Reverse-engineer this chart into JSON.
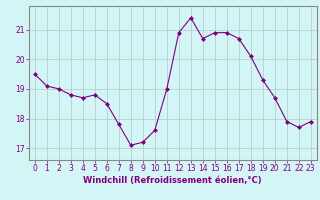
{
  "x": [
    0,
    1,
    2,
    3,
    4,
    5,
    6,
    7,
    8,
    9,
    10,
    11,
    12,
    13,
    14,
    15,
    16,
    17,
    18,
    19,
    20,
    21,
    22,
    23
  ],
  "y": [
    19.5,
    19.1,
    19.0,
    18.8,
    18.7,
    18.8,
    18.5,
    17.8,
    17.1,
    17.2,
    17.6,
    19.0,
    20.9,
    21.4,
    20.7,
    20.9,
    20.9,
    20.7,
    20.1,
    19.3,
    18.7,
    17.9,
    17.7,
    17.9
  ],
  "line_color": "#800080",
  "marker": "D",
  "marker_size": 2.0,
  "bg_color": "#d4f5f5",
  "grid_color": "#b0c8c8",
  "xlabel": "Windchill (Refroidissement éolien,°C)",
  "xlabel_color": "#800080",
  "tick_color": "#800080",
  "ylim": [
    16.6,
    21.8
  ],
  "yticks": [
    17,
    18,
    19,
    20,
    21
  ],
  "xlim": [
    -0.5,
    23.5
  ],
  "xticks": [
    0,
    1,
    2,
    3,
    4,
    5,
    6,
    7,
    8,
    9,
    10,
    11,
    12,
    13,
    14,
    15,
    16,
    17,
    18,
    19,
    20,
    21,
    22,
    23
  ],
  "tick_fontsize": 5.5,
  "xlabel_fontsize": 6.0
}
